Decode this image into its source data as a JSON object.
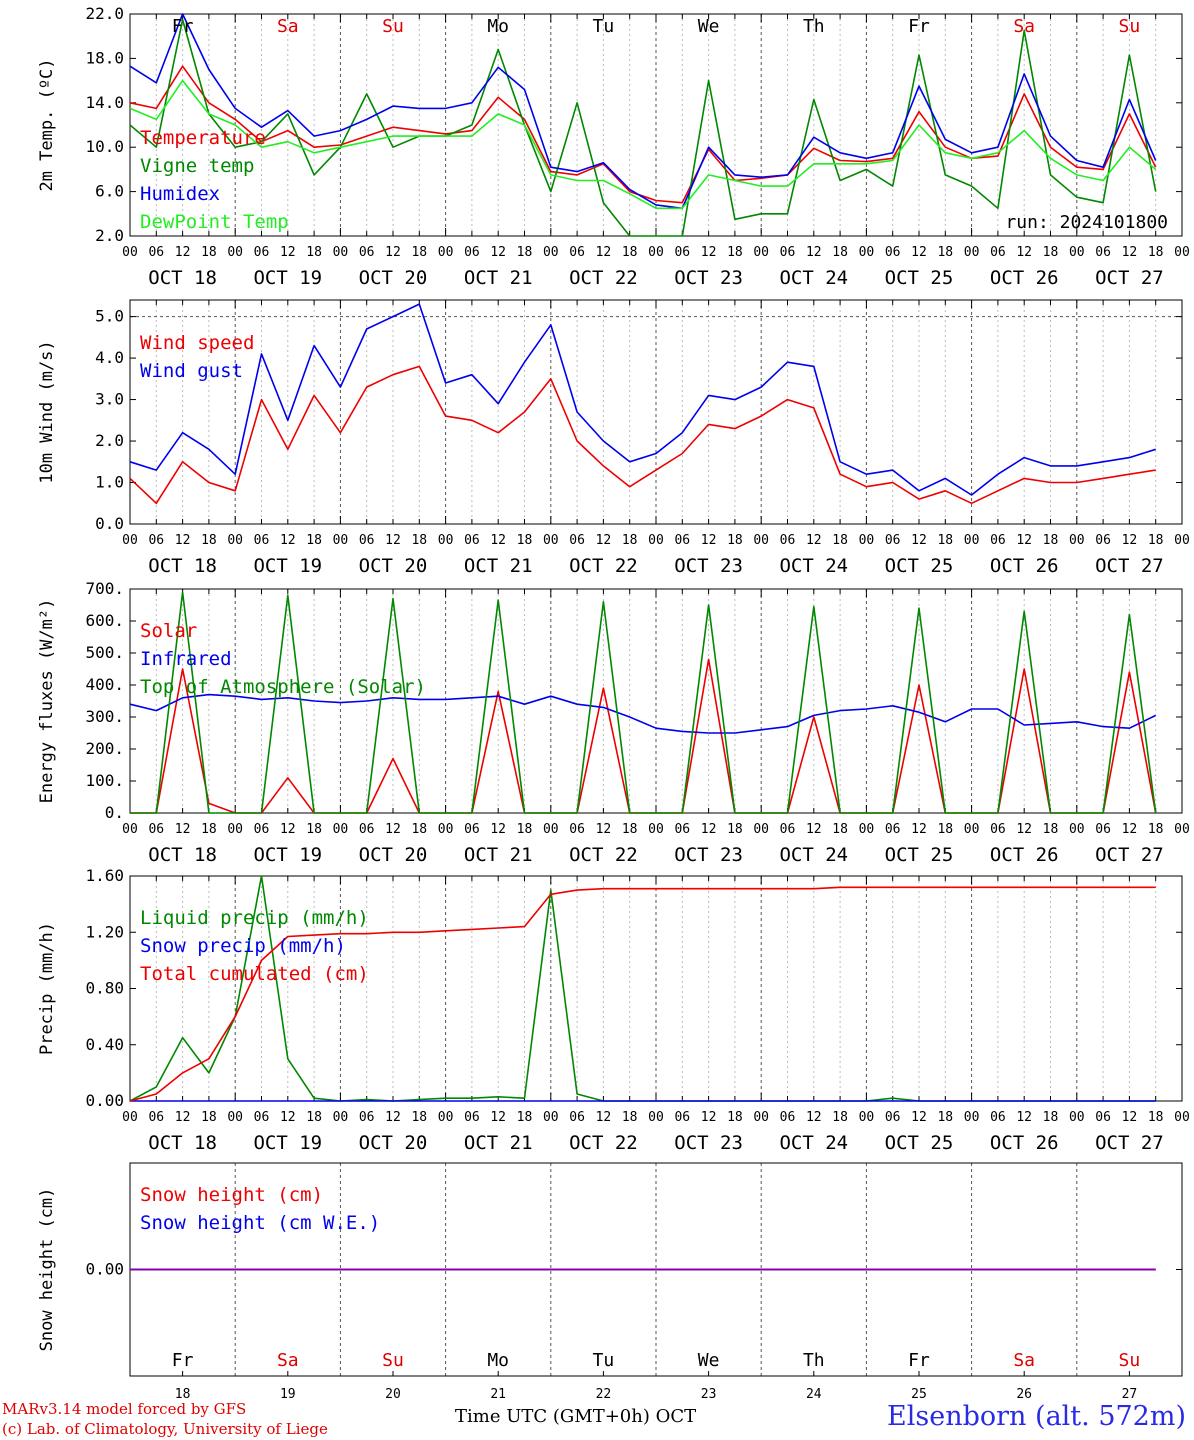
{
  "day_labels": [
    {
      "abbr": "Fr",
      "color": "#000000"
    },
    {
      "abbr": "Sa",
      "color": "#e00000"
    },
    {
      "abbr": "Su",
      "color": "#e00000"
    },
    {
      "abbr": "Mo",
      "color": "#000000"
    },
    {
      "abbr": "Tu",
      "color": "#000000"
    },
    {
      "abbr": "We",
      "color": "#000000"
    },
    {
      "abbr": "Th",
      "color": "#000000"
    },
    {
      "abbr": "Fr",
      "color": "#000000"
    },
    {
      "abbr": "Sa",
      "color": "#e00000"
    },
    {
      "abbr": "Su",
      "color": "#e00000"
    }
  ],
  "date_labels": [
    "OCT 18",
    "OCT 19",
    "OCT 20",
    "OCT 21",
    "OCT 22",
    "OCT 23",
    "OCT 24",
    "OCT 25",
    "OCT 26",
    "OCT 27"
  ],
  "hour_labels": [
    "00",
    "06",
    "12",
    "18"
  ],
  "bottom_day_numbers": [
    "18",
    "19",
    "20",
    "21",
    "22",
    "23",
    "24",
    "25",
    "26",
    "27"
  ],
  "footer": {
    "credit_line1": "MARv3.14 model forced by GFS",
    "credit_line2": "(c) Lab. of Climatology, University of Liege",
    "x_title": "Time UTC (GMT+0h) OCT",
    "station": "Elsenborn (alt. 572m)"
  },
  "colors": {
    "red": "#ee0000",
    "green": "#008800",
    "blue": "#0000ee",
    "light_green": "#22ee22",
    "purple": "#8800aa"
  },
  "chart_data": [
    {
      "type": "line",
      "ylabel": "2m Temp. (ºC)",
      "ylim": [
        2.0,
        22.0
      ],
      "yticks": [
        "2.0",
        "6.0",
        "10.0",
        "14.0",
        "18.0",
        "22.0"
      ],
      "annotation": "run: 2024101800",
      "x_hours": [
        0,
        6,
        12,
        18,
        24,
        30,
        36,
        42,
        48,
        54,
        60,
        66,
        72,
        78,
        84,
        90,
        96,
        102,
        108,
        114,
        120,
        126,
        132,
        138,
        144,
        150,
        156,
        162,
        168,
        174,
        180,
        186,
        192,
        198,
        204,
        210,
        216,
        222,
        228,
        234
      ],
      "series": [
        {
          "name": "Temperature",
          "color": "#ee0000",
          "values": [
            14.0,
            13.5,
            17.3,
            14.0,
            12.5,
            10.5,
            11.5,
            10.0,
            10.2,
            11.0,
            11.8,
            11.5,
            11.2,
            11.5,
            14.5,
            12.5,
            7.8,
            7.5,
            8.5,
            6.0,
            5.2,
            5.0,
            9.8,
            7.0,
            7.2,
            7.5,
            9.9,
            8.8,
            8.7,
            9.0,
            13.2,
            10.0,
            9.0,
            9.2,
            14.8,
            10.0,
            8.2,
            8.0,
            13.0,
            8.2
          ]
        },
        {
          "name": "Vigne temp",
          "color": "#008800",
          "values": [
            12.0,
            10.0,
            21.5,
            13.0,
            10.0,
            10.5,
            13.0,
            7.5,
            10.0,
            14.8,
            10.0,
            11.0,
            11.0,
            12.0,
            18.8,
            12.0,
            6.0,
            14.0,
            5.0,
            2.0,
            1.0,
            1.5,
            16.0,
            3.5,
            4.0,
            4.0,
            14.3,
            7.0,
            8.0,
            6.5,
            18.3,
            7.5,
            6.5,
            4.5,
            20.5,
            7.5,
            5.5,
            5.0,
            18.3,
            6.0
          ]
        },
        {
          "name": "Humidex",
          "color": "#0000ee",
          "values": [
            17.3,
            15.8,
            22.0,
            17.0,
            13.5,
            11.8,
            13.3,
            11.0,
            11.5,
            12.5,
            13.7,
            13.5,
            13.5,
            14.0,
            17.2,
            15.2,
            8.2,
            7.8,
            8.6,
            6.2,
            4.8,
            4.5,
            10.0,
            7.5,
            7.3,
            7.5,
            10.9,
            9.5,
            9.0,
            9.5,
            15.5,
            10.7,
            9.5,
            10.0,
            16.6,
            11.0,
            8.8,
            8.2,
            14.3,
            8.8
          ]
        },
        {
          "name": "DewPoint Temp",
          "color": "#22ee22",
          "values": [
            13.5,
            12.5,
            16.0,
            13.0,
            12.0,
            10.0,
            10.5,
            9.5,
            10.0,
            10.5,
            11.0,
            11.0,
            11.0,
            11.0,
            13.0,
            12.0,
            7.5,
            7.0,
            7.0,
            5.8,
            4.5,
            4.5,
            7.5,
            7.0,
            6.5,
            6.5,
            8.5,
            8.5,
            8.5,
            8.8,
            12.0,
            9.5,
            9.0,
            9.5,
            11.5,
            9.0,
            7.5,
            7.0,
            10.0,
            8.0
          ]
        }
      ]
    },
    {
      "type": "line",
      "ylabel": "10m Wind (m/s)",
      "ylim": [
        0.0,
        5.4
      ],
      "yticks": [
        "0.0",
        "1.0",
        "2.0",
        "3.0",
        "4.0",
        "5.0"
      ],
      "x_hours": [
        0,
        6,
        12,
        18,
        24,
        30,
        36,
        42,
        48,
        54,
        60,
        66,
        72,
        78,
        84,
        90,
        96,
        102,
        108,
        114,
        120,
        126,
        132,
        138,
        144,
        150,
        156,
        162,
        168,
        174,
        180,
        186,
        192,
        198,
        204,
        210,
        216,
        222,
        228,
        234
      ],
      "series": [
        {
          "name": "Wind speed",
          "color": "#ee0000",
          "values": [
            1.1,
            0.5,
            1.5,
            1.0,
            0.8,
            3.0,
            1.8,
            3.1,
            2.2,
            3.3,
            3.6,
            3.8,
            2.6,
            2.5,
            2.2,
            2.7,
            3.5,
            2.0,
            1.4,
            0.9,
            1.3,
            1.7,
            2.4,
            2.3,
            2.6,
            3.0,
            2.8,
            1.2,
            0.9,
            1.0,
            0.6,
            0.8,
            0.5,
            0.8,
            1.1,
            1.0,
            1.0,
            1.1,
            1.2,
            1.3
          ]
        },
        {
          "name": "Wind gust",
          "color": "#0000ee",
          "values": [
            1.5,
            1.3,
            2.2,
            1.8,
            1.2,
            4.1,
            2.5,
            4.3,
            3.3,
            4.7,
            5.0,
            5.3,
            3.4,
            3.6,
            2.9,
            3.9,
            4.8,
            2.7,
            2.0,
            1.5,
            1.7,
            2.2,
            3.1,
            3.0,
            3.3,
            3.9,
            3.8,
            1.5,
            1.2,
            1.3,
            0.8,
            1.1,
            0.7,
            1.2,
            1.6,
            1.4,
            1.4,
            1.5,
            1.6,
            1.8
          ]
        }
      ]
    },
    {
      "type": "line",
      "ylabel": "Energy fluxes (W/m²)",
      "ylim": [
        0,
        700
      ],
      "yticks": [
        "0.",
        "100.",
        "200.",
        "300.",
        "400.",
        "500.",
        "600.",
        "700."
      ],
      "x_hours": [
        0,
        6,
        12,
        18,
        24,
        30,
        36,
        42,
        48,
        54,
        60,
        66,
        72,
        78,
        84,
        90,
        96,
        102,
        108,
        114,
        120,
        126,
        132,
        138,
        144,
        150,
        156,
        162,
        168,
        174,
        180,
        186,
        192,
        198,
        204,
        210,
        216,
        222,
        228,
        234
      ],
      "series": [
        {
          "name": "Solar",
          "color": "#ee0000",
          "values": [
            0,
            0,
            450,
            30,
            0,
            0,
            110,
            0,
            0,
            0,
            170,
            0,
            0,
            0,
            380,
            0,
            0,
            0,
            390,
            0,
            0,
            0,
            480,
            0,
            0,
            0,
            300,
            0,
            0,
            0,
            400,
            0,
            0,
            0,
            450,
            0,
            0,
            0,
            440,
            0
          ]
        },
        {
          "name": "Infrared",
          "color": "#0000ee",
          "values": [
            340,
            320,
            360,
            370,
            365,
            355,
            360,
            350,
            345,
            350,
            360,
            355,
            355,
            360,
            365,
            340,
            365,
            340,
            330,
            300,
            265,
            255,
            250,
            250,
            260,
            270,
            305,
            320,
            325,
            335,
            315,
            285,
            325,
            325,
            275,
            280,
            285,
            270,
            265,
            305
          ]
        },
        {
          "name": "Top of Atmosphere (Solar)",
          "color": "#008800",
          "values": [
            0,
            0,
            690,
            0,
            0,
            0,
            680,
            0,
            0,
            0,
            670,
            0,
            0,
            0,
            665,
            0,
            0,
            0,
            660,
            0,
            0,
            0,
            650,
            0,
            0,
            0,
            645,
            0,
            0,
            0,
            640,
            0,
            0,
            0,
            630,
            0,
            0,
            0,
            620,
            0
          ]
        }
      ]
    },
    {
      "type": "line",
      "ylabel": "Precip (mm/h)",
      "ylim": [
        0.0,
        1.6
      ],
      "yticks": [
        "0.00",
        "0.40",
        "0.80",
        "1.20",
        "1.60"
      ],
      "x_hours": [
        0,
        6,
        12,
        18,
        24,
        30,
        36,
        42,
        48,
        54,
        60,
        66,
        72,
        78,
        84,
        90,
        96,
        102,
        108,
        114,
        120,
        126,
        132,
        138,
        144,
        150,
        156,
        162,
        168,
        174,
        180,
        186,
        192,
        198,
        204,
        210,
        216,
        222,
        228,
        234
      ],
      "series": [
        {
          "name": "Liquid precip (mm/h)",
          "color": "#008800",
          "values": [
            0.0,
            0.1,
            0.45,
            0.2,
            0.6,
            1.6,
            0.3,
            0.02,
            0.0,
            0.01,
            0.0,
            0.01,
            0.02,
            0.02,
            0.03,
            0.02,
            1.5,
            0.05,
            0.0,
            0.0,
            0.0,
            0.0,
            0.0,
            0.0,
            0.0,
            0.0,
            0.0,
            0.0,
            0.0,
            0.02,
            0.0,
            0.0,
            0.0,
            0.0,
            0.0,
            0.0,
            0.0,
            0.0,
            0.0,
            0.0
          ]
        },
        {
          "name": "Snow precip (mm/h)",
          "color": "#0000ee",
          "values": [
            0,
            0,
            0,
            0,
            0,
            0,
            0,
            0,
            0,
            0,
            0,
            0,
            0,
            0,
            0,
            0,
            0,
            0,
            0,
            0,
            0,
            0,
            0,
            0,
            0,
            0,
            0,
            0,
            0,
            0,
            0,
            0,
            0,
            0,
            0,
            0,
            0,
            0,
            0,
            0
          ]
        },
        {
          "name": "Total cumulated (cm)",
          "color": "#ee0000",
          "values": [
            0.0,
            0.05,
            0.2,
            0.3,
            0.6,
            1.0,
            1.17,
            1.18,
            1.19,
            1.19,
            1.2,
            1.2,
            1.21,
            1.22,
            1.23,
            1.24,
            1.47,
            1.5,
            1.51,
            1.51,
            1.51,
            1.51,
            1.51,
            1.51,
            1.51,
            1.51,
            1.51,
            1.52,
            1.52,
            1.52,
            1.52,
            1.52,
            1.52,
            1.52,
            1.52,
            1.52,
            1.52,
            1.52,
            1.52,
            1.52
          ]
        }
      ]
    },
    {
      "type": "line",
      "ylabel": "Snow height (cm)",
      "ylim": [
        -1.0,
        1.0
      ],
      "yticks": [
        "0.00"
      ],
      "x_hours": [
        0,
        234
      ],
      "series": [
        {
          "name": "Snow height (cm)",
          "color": "#ee0000",
          "values": [
            0.0,
            0.0
          ]
        },
        {
          "name": "Snow height (cm W.E.)",
          "color": "#0000ee",
          "values": [
            0.0,
            0.0
          ]
        }
      ]
    }
  ]
}
